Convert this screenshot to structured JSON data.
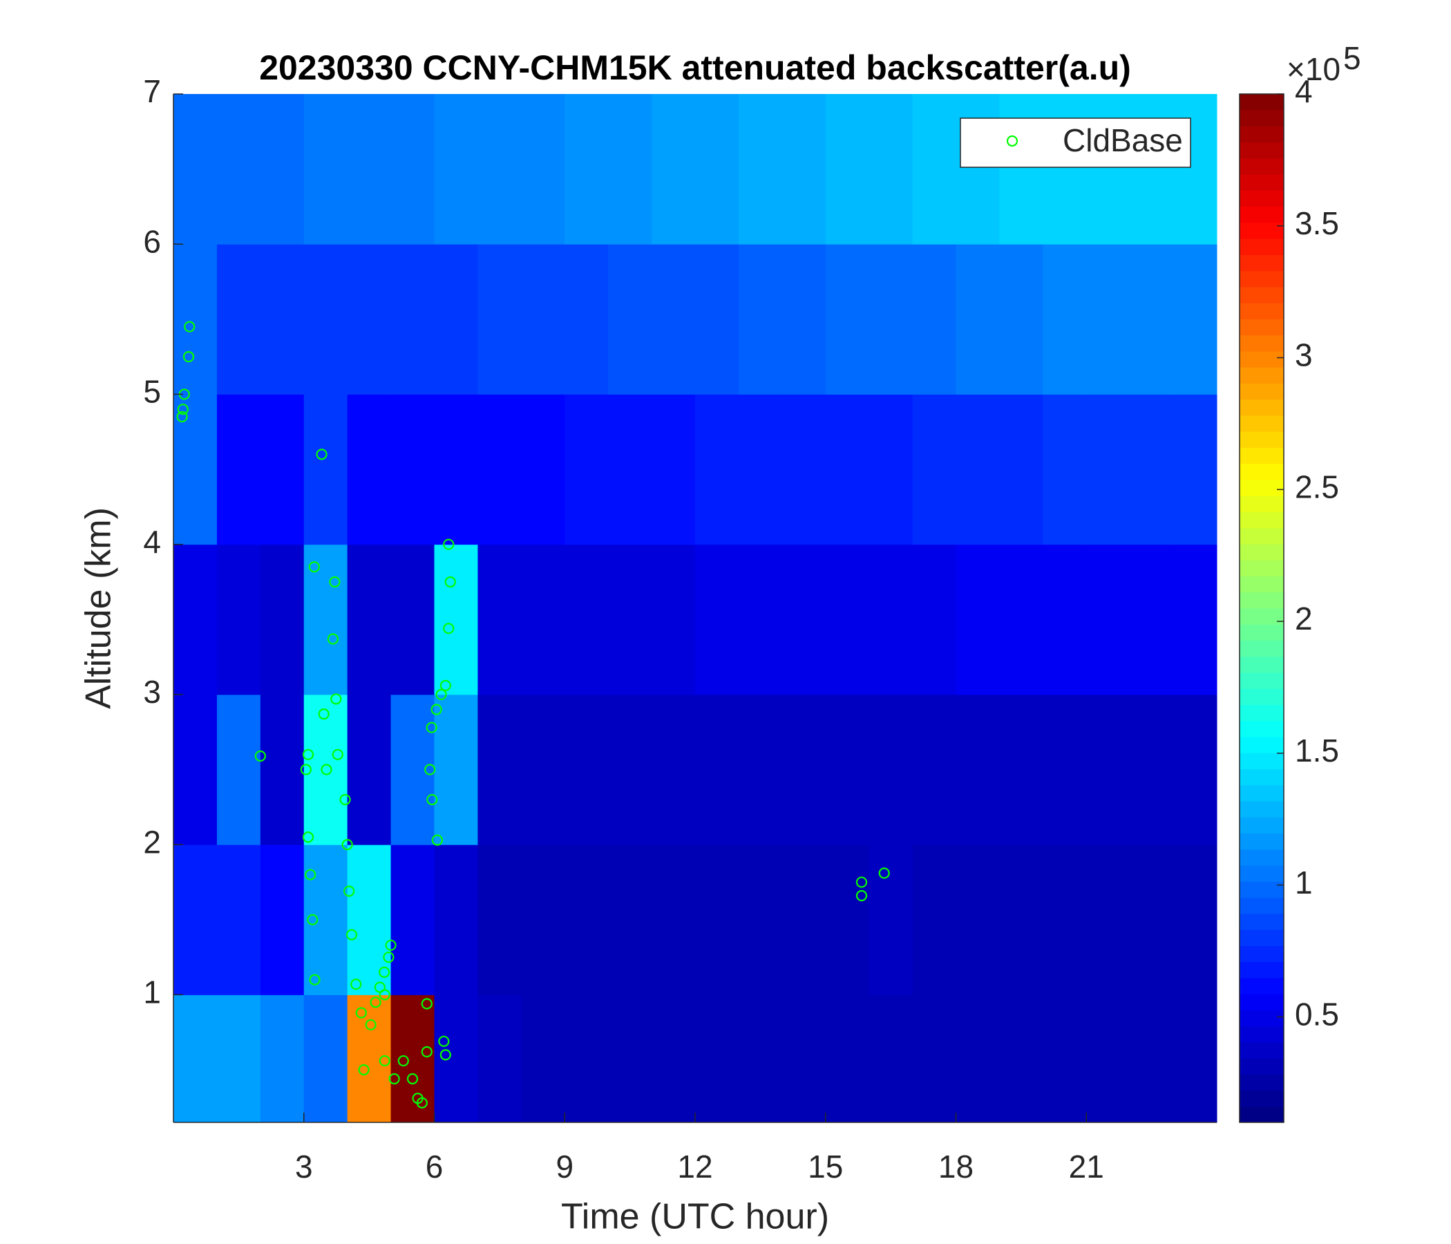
{
  "chart_data": {
    "type": "heatmap",
    "title": "20230330 CCNY-CHM15K attenuated backscatter(a.u)",
    "xlabel": "Time (UTC hour)",
    "ylabel": "Altitude (km)",
    "xlim": [
      0,
      24
    ],
    "ylim": [
      0.15,
      7
    ],
    "xticks": [
      3,
      6,
      9,
      12,
      15,
      18,
      21
    ],
    "yticks": [
      1,
      2,
      3,
      4,
      5,
      6,
      7
    ],
    "x_edges": [
      0,
      1,
      2,
      3,
      4,
      5,
      6,
      7,
      8,
      9,
      10,
      11,
      12,
      13,
      14,
      15,
      16,
      17,
      18,
      19,
      20,
      21,
      22,
      23,
      24
    ],
    "y_edges": [
      0.15,
      1,
      2,
      3,
      4,
      5,
      6,
      7
    ],
    "z": [
      [
        1.2,
        1.2,
        1.1,
        1.0,
        3.0,
        4.0,
        0.4,
        0.35,
        0.3,
        0.3,
        0.3,
        0.3,
        0.3,
        0.3,
        0.3,
        0.3,
        0.3,
        0.3,
        0.3,
        0.3,
        0.3,
        0.3,
        0.3,
        0.3
      ],
      [
        0.7,
        0.7,
        0.6,
        1.2,
        1.5,
        0.5,
        0.4,
        0.3,
        0.3,
        0.3,
        0.3,
        0.3,
        0.3,
        0.3,
        0.3,
        0.3,
        0.35,
        0.3,
        0.3,
        0.3,
        0.3,
        0.3,
        0.3,
        0.3
      ],
      [
        0.5,
        1.0,
        0.4,
        1.6,
        0.4,
        1.0,
        1.2,
        0.35,
        0.35,
        0.35,
        0.35,
        0.35,
        0.35,
        0.35,
        0.35,
        0.35,
        0.35,
        0.35,
        0.35,
        0.35,
        0.35,
        0.35,
        0.35,
        0.35
      ],
      [
        0.5,
        0.45,
        0.4,
        1.2,
        0.4,
        0.4,
        1.5,
        0.45,
        0.45,
        0.45,
        0.45,
        0.45,
        0.5,
        0.5,
        0.5,
        0.5,
        0.5,
        0.5,
        0.55,
        0.55,
        0.55,
        0.55,
        0.55,
        0.55
      ],
      [
        1.0,
        0.6,
        0.6,
        0.8,
        0.6,
        0.6,
        0.6,
        0.6,
        0.6,
        0.65,
        0.65,
        0.65,
        0.7,
        0.7,
        0.7,
        0.7,
        0.7,
        0.75,
        0.75,
        0.75,
        0.8,
        0.8,
        0.8,
        0.8
      ],
      [
        1.0,
        0.8,
        0.8,
        0.8,
        0.8,
        0.8,
        0.8,
        0.85,
        0.85,
        0.85,
        0.9,
        0.9,
        0.9,
        0.95,
        0.95,
        1.0,
        1.0,
        1.0,
        1.05,
        1.05,
        1.1,
        1.1,
        1.1,
        1.1
      ],
      [
        1.0,
        1.0,
        1.0,
        1.05,
        1.05,
        1.05,
        1.1,
        1.1,
        1.1,
        1.15,
        1.15,
        1.2,
        1.2,
        1.25,
        1.25,
        1.3,
        1.3,
        1.35,
        1.35,
        1.4,
        1.4,
        1.4,
        1.4,
        1.4
      ]
    ],
    "clim": [
      0.1,
      4
    ],
    "cticks": [
      0.5,
      1,
      1.5,
      2,
      2.5,
      3,
      3.5,
      4
    ],
    "colorbar_multiplier": {
      "base": "×10",
      "exponent": "5"
    },
    "colormap": "jet",
    "legend": "upper right",
    "series": [
      {
        "name": "CldBase",
        "type": "scatter",
        "color": "#00ff00",
        "x": [
          0.2,
          0.22,
          0.25,
          0.35,
          0.37,
          3.41,
          3.1,
          3.05,
          3.1,
          3.15,
          3.2,
          3.25,
          3.24,
          3.71,
          3.67,
          3.46,
          3.52,
          3.74,
          3.78,
          3.95,
          4.0,
          4.04,
          4.1,
          4.2,
          4.32,
          4.38,
          4.54,
          4.65,
          4.75,
          4.85,
          4.95,
          5.0,
          4.86,
          4.86,
          5.08,
          5.29,
          5.5,
          5.62,
          5.72,
          5.83,
          5.83,
          5.9,
          5.95,
          6.07,
          5.94,
          6.05,
          6.16,
          6.26,
          6.33,
          6.37,
          6.33,
          6.22,
          6.26,
          2.0,
          15.83,
          15.83,
          16.35
        ],
        "y": [
          4.85,
          4.9,
          5.0,
          5.25,
          5.45,
          4.6,
          2.6,
          2.5,
          2.05,
          1.8,
          1.5,
          1.1,
          3.85,
          3.75,
          3.37,
          2.87,
          2.5,
          2.97,
          2.6,
          2.3,
          2.0,
          1.69,
          1.4,
          1.07,
          0.88,
          0.5,
          0.8,
          0.95,
          1.05,
          1.15,
          1.25,
          1.33,
          1.0,
          0.56,
          0.44,
          0.56,
          0.44,
          0.31,
          0.28,
          0.62,
          0.94,
          2.5,
          2.3,
          2.03,
          2.78,
          2.9,
          3.0,
          3.06,
          3.44,
          3.75,
          4.0,
          0.69,
          0.6,
          2.59,
          1.75,
          1.66,
          1.81
        ]
      }
    ]
  }
}
